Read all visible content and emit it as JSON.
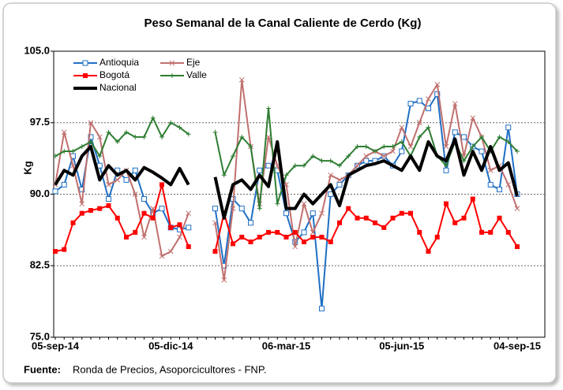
{
  "chart_data": {
    "type": "line",
    "title": "Peso Semanal de la Canal Caliente de Cerdo (Kg)",
    "y_label": "Kg",
    "source_label": "Fuente:",
    "source": "Ronda de Precios, Asoporcicultores  - FNP.",
    "categories": [
      "05-sep-14",
      null,
      null,
      null,
      null,
      null,
      null,
      null,
      null,
      null,
      null,
      null,
      null,
      "05-dic-14",
      null,
      null,
      null,
      null,
      null,
      null,
      null,
      null,
      null,
      null,
      null,
      null,
      "06-mar-15",
      null,
      null,
      null,
      null,
      null,
      null,
      null,
      null,
      null,
      null,
      null,
      null,
      "05-jun-15",
      null,
      null,
      null,
      null,
      null,
      null,
      null,
      null,
      null,
      null,
      null,
      null,
      "04-sep-15"
    ],
    "ylim": [
      75,
      105
    ],
    "yticks": [
      {
        "value": 75,
        "label": "75.0"
      },
      82.5,
      {
        "value": 90,
        "label": "90.0"
      },
      97.5,
      {
        "value": 105,
        "label": "105.0"
      }
    ],
    "grid": true,
    "legend": "top-left",
    "series": [
      {
        "name": "Antioquia",
        "color": "#1f6fc4",
        "marker": "square-open",
        "values": [
          90.3,
          91,
          94,
          90.5,
          96,
          93,
          89.5,
          92.5,
          91.5,
          92.5,
          89.5,
          88,
          88.5,
          86.5,
          86.3,
          86.5,
          null,
          null,
          88.5,
          82.5,
          89.5,
          88.5,
          87,
          92.5,
          93,
          92.5,
          88,
          85,
          86,
          88,
          78,
          90,
          91,
          92,
          93,
          93.5,
          93.5,
          94,
          93,
          94.5,
          99.5,
          99.8,
          99,
          100.5,
          92.5,
          96.5,
          96,
          95,
          94.5,
          91,
          90.5,
          97,
          90
        ]
      },
      {
        "name": "Eje",
        "color": "#c0706e",
        "marker": "x",
        "values": [
          91,
          96.5,
          93,
          89,
          97.5,
          96,
          91,
          91.5,
          92.5,
          90,
          85.5,
          88.5,
          83.5,
          84,
          85.5,
          88,
          null,
          null,
          87,
          81,
          88.5,
          102,
          95,
          89,
          96,
          93,
          91,
          84.5,
          89,
          86,
          88,
          92,
          91.5,
          92,
          93,
          94,
          94.5,
          94,
          94.5,
          97,
          95,
          97.5,
          100,
          101.5,
          95,
          99.5,
          94,
          98,
          96,
          92.5,
          93,
          91,
          88.5
        ]
      },
      {
        "name": "Bogotá",
        "color": "#ff0000",
        "marker": "square",
        "values": [
          84,
          84.2,
          87,
          88,
          88.3,
          88.5,
          88.8,
          87.5,
          85.5,
          86,
          88,
          87.5,
          91,
          86.5,
          86.8,
          84.5,
          null,
          null,
          84,
          88,
          84.8,
          85.5,
          85,
          85.5,
          86,
          86,
          85.5,
          86,
          85,
          85.5,
          85.5,
          85,
          87,
          88.5,
          87.5,
          87.5,
          87,
          86.5,
          87.5,
          88,
          88,
          86,
          84,
          85.5,
          89,
          87,
          87.5,
          89.5,
          86,
          86,
          87.5,
          86,
          84.5
        ]
      },
      {
        "name": "Valle",
        "color": "#2e7d32",
        "marker": "plus",
        "values": [
          94,
          94.5,
          94.5,
          95,
          95.5,
          94,
          96.5,
          95.5,
          96.5,
          96,
          96,
          98,
          96,
          97.5,
          97,
          96.3,
          null,
          null,
          96.5,
          92,
          94,
          96,
          95,
          88.5,
          99,
          89,
          92,
          93,
          93,
          94,
          93.5,
          93.5,
          93,
          94,
          95,
          95,
          94.5,
          95,
          95,
          95.5,
          94,
          96,
          97,
          94,
          93,
          95.5,
          93.5,
          95,
          96,
          94.5,
          96,
          95.5,
          94.5
        ]
      },
      {
        "name": "Nacional",
        "color": "#000000",
        "marker": "none",
        "values": [
          91,
          92.5,
          92,
          94,
          95,
          91.5,
          93,
          92,
          92.5,
          91.5,
          92.8,
          92.3,
          91.7,
          91,
          92.7,
          91,
          null,
          null,
          91.8,
          87.5,
          91,
          91.5,
          90.5,
          92,
          90.8,
          95.5,
          88.5,
          88.5,
          90,
          89,
          90,
          91,
          88.8,
          92,
          92.5,
          93,
          93.2,
          93.5,
          93,
          92.5,
          94,
          92.5,
          95.5,
          94,
          93.5,
          95.8,
          92,
          94.5,
          92.5,
          95,
          92.5,
          93.3,
          89.8
        ]
      }
    ]
  }
}
